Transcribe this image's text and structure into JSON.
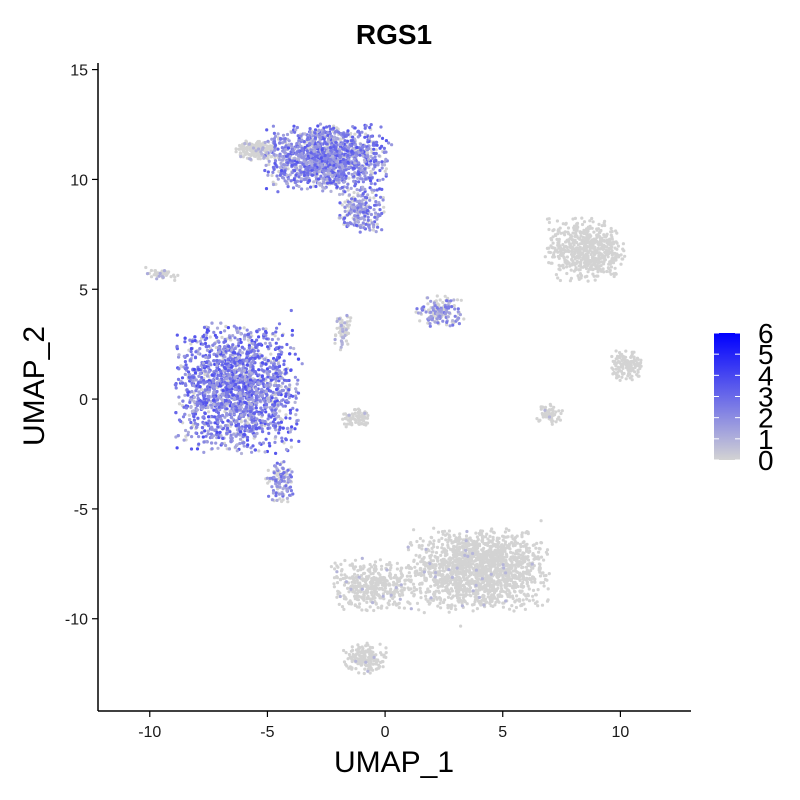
{
  "chart_data": {
    "type": "scatter",
    "title": "RGS1",
    "xlabel": "UMAP_1",
    "ylabel": "UMAP_2",
    "xlim": [
      -12.2,
      13.0
    ],
    "ylim": [
      -14.2,
      15.3
    ],
    "x_ticks": [
      -10,
      -5,
      0,
      5,
      10
    ],
    "x_tick_labels": [
      "-10",
      "-5",
      "0",
      "5",
      "10"
    ],
    "y_ticks": [
      -10,
      -5,
      0,
      5,
      10,
      15
    ],
    "y_tick_labels": [
      "-10",
      "-5",
      "0",
      "5",
      "10",
      "15"
    ],
    "grid": false,
    "color_scale": {
      "low_color": "#d3d3d3",
      "high_color": "#0000ff",
      "min": 0,
      "max": 6,
      "ticks": [
        0,
        1,
        2,
        3,
        4,
        5,
        6
      ],
      "tick_labels": [
        "0",
        "1",
        "2",
        "3",
        "4",
        "5",
        "6"
      ],
      "placement": "right"
    },
    "clusters": [
      {
        "cx": -2.5,
        "cy": 11.0,
        "sx": 2.2,
        "sy": 1.3,
        "n": 1400,
        "expr": 2.6
      },
      {
        "cx": -1.0,
        "cy": 8.6,
        "sx": 0.8,
        "sy": 0.9,
        "n": 220,
        "expr": 2.2
      },
      {
        "cx": -5.5,
        "cy": 11.3,
        "sx": 0.7,
        "sy": 0.4,
        "n": 180,
        "expr": 0.3
      },
      {
        "cx": -6.3,
        "cy": 0.5,
        "sx": 2.2,
        "sy": 2.5,
        "n": 2200,
        "expr": 2.8
      },
      {
        "cx": -4.5,
        "cy": -3.8,
        "sx": 0.5,
        "sy": 0.8,
        "n": 120,
        "expr": 2.0
      },
      {
        "cx": -1.8,
        "cy": 3.2,
        "sx": 0.3,
        "sy": 0.8,
        "n": 60,
        "expr": 0.6
      },
      {
        "cx": -1.2,
        "cy": -0.8,
        "sx": 0.5,
        "sy": 0.4,
        "n": 80,
        "expr": 0.1
      },
      {
        "cx": -9.5,
        "cy": 5.7,
        "sx": 0.6,
        "sy": 0.25,
        "n": 40,
        "expr": 0.4
      },
      {
        "cx": 2.3,
        "cy": 4.0,
        "sx": 0.9,
        "sy": 0.6,
        "n": 160,
        "expr": 1.8
      },
      {
        "cx": 8.5,
        "cy": 6.8,
        "sx": 1.4,
        "sy": 1.2,
        "n": 600,
        "expr": 0.0
      },
      {
        "cx": 10.3,
        "cy": 1.5,
        "sx": 0.6,
        "sy": 0.6,
        "n": 140,
        "expr": 0.0
      },
      {
        "cx": 7.0,
        "cy": -0.7,
        "sx": 0.5,
        "sy": 0.4,
        "n": 60,
        "expr": 0.1
      },
      {
        "cx": 4.0,
        "cy": -7.8,
        "sx": 2.5,
        "sy": 1.6,
        "n": 1600,
        "expr": 0.05
      },
      {
        "cx": -0.5,
        "cy": -8.5,
        "sx": 1.5,
        "sy": 1.0,
        "n": 400,
        "expr": 0.1
      },
      {
        "cx": -0.8,
        "cy": -11.8,
        "sx": 0.8,
        "sy": 0.6,
        "n": 160,
        "expr": 0.05
      }
    ]
  }
}
